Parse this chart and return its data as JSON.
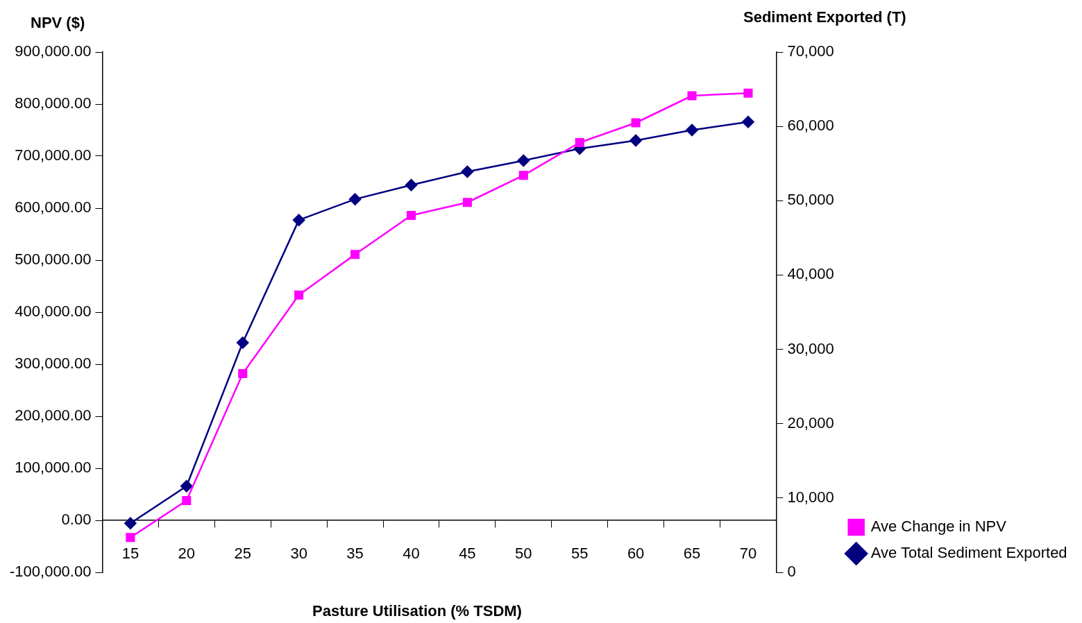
{
  "chart_data": {
    "type": "line",
    "xlabel": "Pasture Utilisation (% TSDM)",
    "ylabel": "NPV ($)",
    "y2label": "Sediment Exported (T)",
    "categories": [
      "15",
      "20",
      "25",
      "30",
      "35",
      "40",
      "45",
      "50",
      "55",
      "60",
      "65",
      "70"
    ],
    "series": [
      {
        "name": "Ave Change in NPV",
        "color": "#ff00ff",
        "marker": "square",
        "values": [
          -33000,
          38000,
          282000,
          433000,
          511000,
          586000,
          611000,
          663000,
          726000,
          764000,
          816000,
          821000
        ]
      },
      {
        "name": "Ave Total Sediment Exported",
        "color": "#000080",
        "marker": "diamond",
        "axis": "y2",
        "values": [
          6600,
          11600,
          30900,
          47400,
          50200,
          52100,
          53900,
          55400,
          57000,
          58100,
          59500,
          60600
        ]
      }
    ],
    "ylim": [
      -100000,
      900000
    ],
    "yticks": [
      {
        "value": -100000,
        "label": "-100,000.00"
      },
      {
        "value": 0,
        "label": "0.00"
      },
      {
        "value": 100000,
        "label": "100,000.00"
      },
      {
        "value": 200000,
        "label": "200,000.00"
      },
      {
        "value": 300000,
        "label": "300,000.00"
      },
      {
        "value": 400000,
        "label": "400,000.00"
      },
      {
        "value": 500000,
        "label": "500,000.00"
      },
      {
        "value": 600000,
        "label": "600,000.00"
      },
      {
        "value": 700000,
        "label": "700,000.00"
      },
      {
        "value": 800000,
        "label": "800,000.00"
      },
      {
        "value": 900000,
        "label": "900,000.00"
      }
    ],
    "y2lim": [
      0,
      70000
    ],
    "y2ticks": [
      0,
      {
        "value": 10000,
        "label": "10,000"
      },
      {
        "value": 20000,
        "label": "20,000"
      },
      {
        "value": 30000,
        "label": "30,000"
      },
      {
        "value": 40000,
        "label": "40,000"
      },
      {
        "value": 50000,
        "label": "50,000"
      },
      {
        "value": 60000,
        "label": "60,000"
      },
      {
        "value": 70000,
        "label": "70,000"
      }
    ],
    "grid": false,
    "legend": "bottom right",
    "line_style": "solid"
  }
}
